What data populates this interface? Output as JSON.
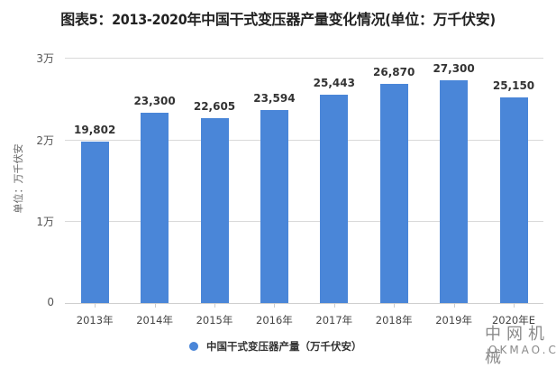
{
  "title": "图表5：2013-2020年中国干式变压器产量变化情况(单位：万千伏安)",
  "y_axis": {
    "label": "单位：万千伏安",
    "ticks": [
      "0",
      "1万",
      "2万",
      "3万"
    ]
  },
  "legend": {
    "label": "中国干式变压器产量（万千伏安）",
    "color": "#4A86D8"
  },
  "watermark": {
    "cn": "中网机械",
    "en": "OKMAO.COM"
  },
  "bars": [
    {
      "label": "2013年",
      "value_text": "19,802"
    },
    {
      "label": "2014年",
      "value_text": "23,300"
    },
    {
      "label": "2015年",
      "value_text": "22,605"
    },
    {
      "label": "2016年",
      "value_text": "23,594"
    },
    {
      "label": "2017年",
      "value_text": "25,443"
    },
    {
      "label": "2018年",
      "value_text": "26,870"
    },
    {
      "label": "2019年",
      "value_text": "27,300"
    },
    {
      "label": "2020年E",
      "value_text": "25,150"
    }
  ],
  "chart_data": {
    "type": "bar",
    "title": "图表5：2013-2020年中国干式变压器产量变化情况(单位：万千伏安)",
    "categories": [
      "2013年",
      "2014年",
      "2015年",
      "2016年",
      "2017年",
      "2018年",
      "2019年",
      "2020年E"
    ],
    "series": [
      {
        "name": "中国干式变压器产量（万千伏安）",
        "values": [
          19802,
          23300,
          22605,
          23594,
          25443,
          26870,
          27300,
          25150
        ],
        "color": "#4A86D8"
      }
    ],
    "xlabel": "",
    "ylabel": "单位：万千伏安",
    "ylim": [
      0,
      30000
    ],
    "yticks": [
      "0",
      "1万",
      "2万",
      "3万"
    ],
    "grid": true,
    "legend_position": "bottom",
    "data_labels": true
  }
}
